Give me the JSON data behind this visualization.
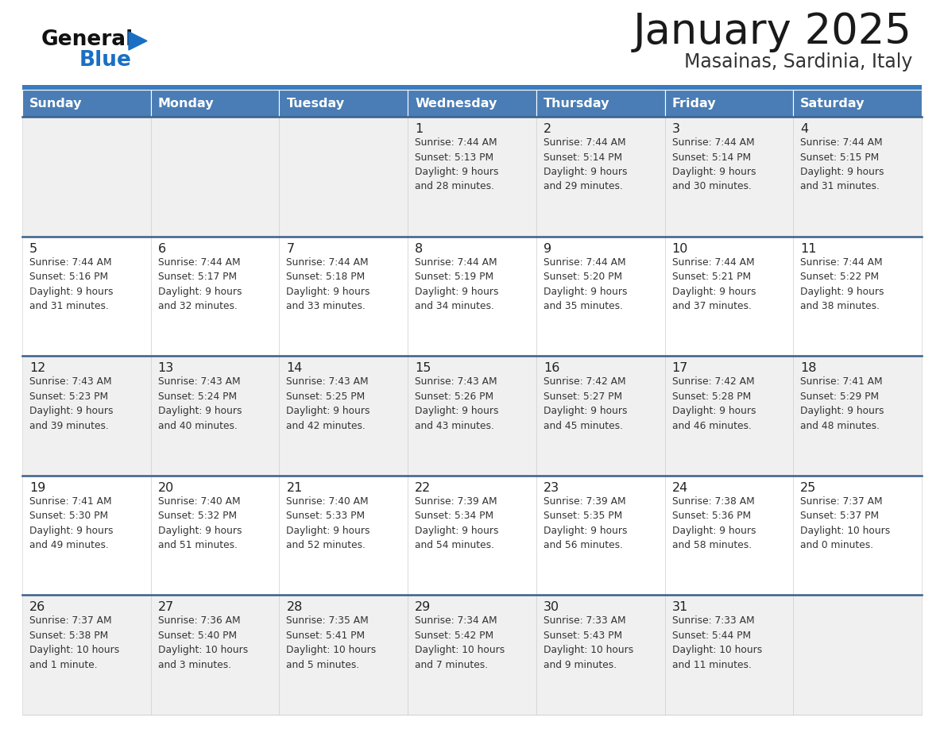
{
  "title": "January 2025",
  "subtitle": "Masainas, Sardinia, Italy",
  "days_of_week": [
    "Sunday",
    "Monday",
    "Tuesday",
    "Wednesday",
    "Thursday",
    "Friday",
    "Saturday"
  ],
  "header_bg": "#4a7db5",
  "header_text": "#ffffff",
  "row_bg_odd": "#f0f0f0",
  "row_bg_even": "#ffffff",
  "cell_border": "#cccccc",
  "row_sep_color": "#3a5f8a",
  "day_number_color": "#222222",
  "text_color": "#333333",
  "title_color": "#1a1a1a",
  "subtitle_color": "#333333",
  "top_line_color": "#3a7bbf",
  "logo_general_color": "#111111",
  "logo_blue_color": "#1a6fc4",
  "calendar_data": [
    [
      {
        "day": null,
        "info": null
      },
      {
        "day": null,
        "info": null
      },
      {
        "day": null,
        "info": null
      },
      {
        "day": 1,
        "info": "Sunrise: 7:44 AM\nSunset: 5:13 PM\nDaylight: 9 hours\nand 28 minutes."
      },
      {
        "day": 2,
        "info": "Sunrise: 7:44 AM\nSunset: 5:14 PM\nDaylight: 9 hours\nand 29 minutes."
      },
      {
        "day": 3,
        "info": "Sunrise: 7:44 AM\nSunset: 5:14 PM\nDaylight: 9 hours\nand 30 minutes."
      },
      {
        "day": 4,
        "info": "Sunrise: 7:44 AM\nSunset: 5:15 PM\nDaylight: 9 hours\nand 31 minutes."
      }
    ],
    [
      {
        "day": 5,
        "info": "Sunrise: 7:44 AM\nSunset: 5:16 PM\nDaylight: 9 hours\nand 31 minutes."
      },
      {
        "day": 6,
        "info": "Sunrise: 7:44 AM\nSunset: 5:17 PM\nDaylight: 9 hours\nand 32 minutes."
      },
      {
        "day": 7,
        "info": "Sunrise: 7:44 AM\nSunset: 5:18 PM\nDaylight: 9 hours\nand 33 minutes."
      },
      {
        "day": 8,
        "info": "Sunrise: 7:44 AM\nSunset: 5:19 PM\nDaylight: 9 hours\nand 34 minutes."
      },
      {
        "day": 9,
        "info": "Sunrise: 7:44 AM\nSunset: 5:20 PM\nDaylight: 9 hours\nand 35 minutes."
      },
      {
        "day": 10,
        "info": "Sunrise: 7:44 AM\nSunset: 5:21 PM\nDaylight: 9 hours\nand 37 minutes."
      },
      {
        "day": 11,
        "info": "Sunrise: 7:44 AM\nSunset: 5:22 PM\nDaylight: 9 hours\nand 38 minutes."
      }
    ],
    [
      {
        "day": 12,
        "info": "Sunrise: 7:43 AM\nSunset: 5:23 PM\nDaylight: 9 hours\nand 39 minutes."
      },
      {
        "day": 13,
        "info": "Sunrise: 7:43 AM\nSunset: 5:24 PM\nDaylight: 9 hours\nand 40 minutes."
      },
      {
        "day": 14,
        "info": "Sunrise: 7:43 AM\nSunset: 5:25 PM\nDaylight: 9 hours\nand 42 minutes."
      },
      {
        "day": 15,
        "info": "Sunrise: 7:43 AM\nSunset: 5:26 PM\nDaylight: 9 hours\nand 43 minutes."
      },
      {
        "day": 16,
        "info": "Sunrise: 7:42 AM\nSunset: 5:27 PM\nDaylight: 9 hours\nand 45 minutes."
      },
      {
        "day": 17,
        "info": "Sunrise: 7:42 AM\nSunset: 5:28 PM\nDaylight: 9 hours\nand 46 minutes."
      },
      {
        "day": 18,
        "info": "Sunrise: 7:41 AM\nSunset: 5:29 PM\nDaylight: 9 hours\nand 48 minutes."
      }
    ],
    [
      {
        "day": 19,
        "info": "Sunrise: 7:41 AM\nSunset: 5:30 PM\nDaylight: 9 hours\nand 49 minutes."
      },
      {
        "day": 20,
        "info": "Sunrise: 7:40 AM\nSunset: 5:32 PM\nDaylight: 9 hours\nand 51 minutes."
      },
      {
        "day": 21,
        "info": "Sunrise: 7:40 AM\nSunset: 5:33 PM\nDaylight: 9 hours\nand 52 minutes."
      },
      {
        "day": 22,
        "info": "Sunrise: 7:39 AM\nSunset: 5:34 PM\nDaylight: 9 hours\nand 54 minutes."
      },
      {
        "day": 23,
        "info": "Sunrise: 7:39 AM\nSunset: 5:35 PM\nDaylight: 9 hours\nand 56 minutes."
      },
      {
        "day": 24,
        "info": "Sunrise: 7:38 AM\nSunset: 5:36 PM\nDaylight: 9 hours\nand 58 minutes."
      },
      {
        "day": 25,
        "info": "Sunrise: 7:37 AM\nSunset: 5:37 PM\nDaylight: 10 hours\nand 0 minutes."
      }
    ],
    [
      {
        "day": 26,
        "info": "Sunrise: 7:37 AM\nSunset: 5:38 PM\nDaylight: 10 hours\nand 1 minute."
      },
      {
        "day": 27,
        "info": "Sunrise: 7:36 AM\nSunset: 5:40 PM\nDaylight: 10 hours\nand 3 minutes."
      },
      {
        "day": 28,
        "info": "Sunrise: 7:35 AM\nSunset: 5:41 PM\nDaylight: 10 hours\nand 5 minutes."
      },
      {
        "day": 29,
        "info": "Sunrise: 7:34 AM\nSunset: 5:42 PM\nDaylight: 10 hours\nand 7 minutes."
      },
      {
        "day": 30,
        "info": "Sunrise: 7:33 AM\nSunset: 5:43 PM\nDaylight: 10 hours\nand 9 minutes."
      },
      {
        "day": 31,
        "info": "Sunrise: 7:33 AM\nSunset: 5:44 PM\nDaylight: 10 hours\nand 11 minutes."
      },
      {
        "day": null,
        "info": null
      }
    ]
  ]
}
